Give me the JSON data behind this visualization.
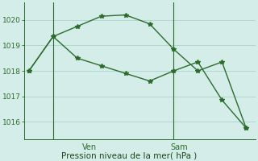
{
  "line1_x": [
    0,
    1,
    2,
    3,
    4,
    5,
    6,
    7,
    8,
    9
  ],
  "line1_y": [
    1018.0,
    1019.35,
    1019.75,
    1020.15,
    1020.2,
    1019.85,
    1018.85,
    1018.0,
    1018.35,
    1015.75
  ],
  "line2_x": [
    0,
    1,
    2,
    3,
    4,
    5,
    6,
    7,
    8,
    9
  ],
  "line2_y": [
    1018.0,
    1019.35,
    1018.5,
    1018.2,
    1017.9,
    1017.6,
    1018.0,
    1018.35,
    1016.85,
    1015.75
  ],
  "ylim": [
    1015.3,
    1020.7
  ],
  "yticks": [
    1016,
    1017,
    1018,
    1019,
    1020
  ],
  "xlim": [
    -0.2,
    9.4
  ],
  "ven_x": 1.0,
  "sam_x": 6.0,
  "color": "#2d6b2d",
  "bg_color": "#d4ede8",
  "grid_color": "#b0d8d0",
  "xlabel": "Pression niveau de la mer( hPa )",
  "xlabel_color": "#1a4a1a",
  "tick_color": "#2d6b2d",
  "line_width": 1.0,
  "marker": "*",
  "marker_size": 4,
  "figsize": [
    3.2,
    2.0
  ],
  "dpi": 100
}
